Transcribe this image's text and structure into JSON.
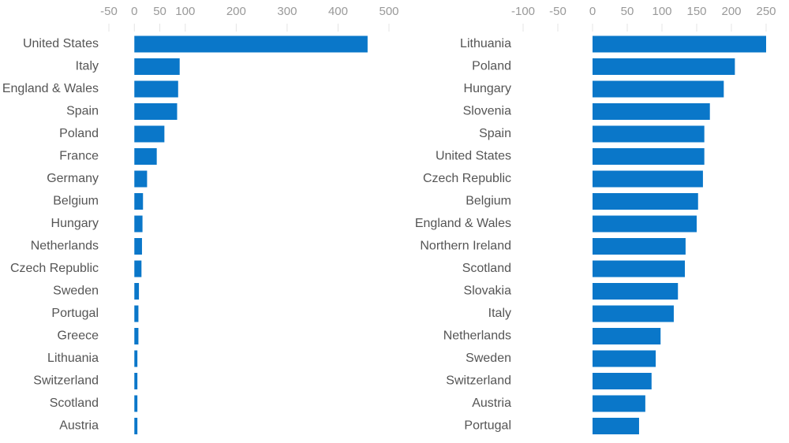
{
  "chart_data": [
    {
      "type": "bar",
      "orientation": "horizontal",
      "color": "#0a77c9",
      "categories": [
        "United States",
        "Italy",
        "England & Wales",
        "Spain",
        "Poland",
        "France",
        "Germany",
        "Belgium",
        "Hungary",
        "Netherlands",
        "Czech Republic",
        "Sweden",
        "Portugal",
        "Greece",
        "Lithuania",
        "Switzerland",
        "Scotland",
        "Austria"
      ],
      "values": [
        458,
        89,
        86,
        84,
        59,
        44,
        25,
        17,
        16,
        15,
        14,
        9,
        8,
        8,
        6,
        6,
        6,
        6
      ],
      "xlim": [
        -50,
        500
      ],
      "xticks": [
        -50,
        0,
        50,
        100,
        200,
        300,
        400,
        500
      ]
    },
    {
      "type": "bar",
      "orientation": "horizontal",
      "color": "#0a77c9",
      "categories": [
        "Lithuania",
        "Poland",
        "Hungary",
        "Slovenia",
        "Spain",
        "United States",
        "Czech Republic",
        "Belgium",
        "England & Wales",
        "Northern Ireland",
        "Scotland",
        "Slovakia",
        "Italy",
        "Netherlands",
        "Sweden",
        "Switzerland",
        "Austria",
        "Portugal"
      ],
      "values": [
        250,
        205,
        189,
        169,
        161,
        161,
        159,
        152,
        150,
        134,
        133,
        123,
        117,
        98,
        91,
        85,
        76,
        67
      ],
      "xlim": [
        -100,
        250
      ],
      "xticks": [
        -100,
        -50,
        0,
        50,
        100,
        150,
        200,
        250
      ]
    }
  ]
}
